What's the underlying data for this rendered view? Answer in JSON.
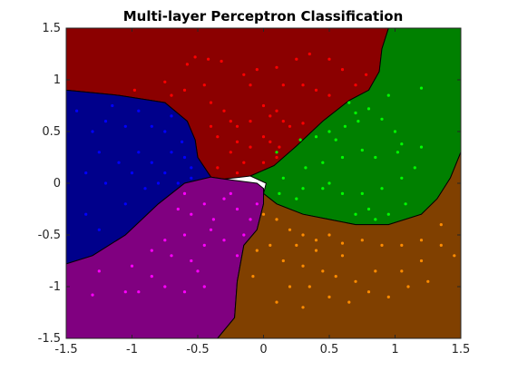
{
  "chart_data": {
    "type": "scatter",
    "title": "Multi-layer Perceptron Classification",
    "xlabel": "",
    "ylabel": "",
    "xlim": [
      -1.5,
      1.5
    ],
    "ylim": [
      -1.5,
      1.5
    ],
    "xticks": [
      "-1.5",
      "-1",
      "-0.5",
      "0",
      "0.5",
      "1",
      "1.5"
    ],
    "yticks": [
      "-1.5",
      "-1",
      "-0.5",
      "0",
      "0.5",
      "1",
      "1.5"
    ],
    "xtick_values": [
      -1.5,
      -1,
      -0.5,
      0,
      0.5,
      1,
      1.5
    ],
    "ytick_values": [
      -1.5,
      -1,
      -0.5,
      0,
      0.5,
      1,
      1.5
    ],
    "grid": false,
    "decision_regions": [
      {
        "class": "red",
        "color": "#8b0000",
        "polygon": [
          [
            -1.5,
            1.5
          ],
          [
            -1.5,
            0.9
          ],
          [
            -1.1,
            0.85
          ],
          [
            -0.75,
            0.78
          ],
          [
            -0.58,
            0.6
          ],
          [
            -0.52,
            0.42
          ],
          [
            -0.5,
            0.25
          ],
          [
            -0.4,
            0.06
          ],
          [
            -0.3,
            0.04
          ],
          [
            -0.1,
            0.07
          ],
          [
            0.08,
            0.17
          ],
          [
            0.25,
            0.36
          ],
          [
            0.45,
            0.6
          ],
          [
            0.65,
            0.8
          ],
          [
            0.8,
            0.9
          ],
          [
            0.88,
            1.08
          ],
          [
            0.9,
            1.3
          ],
          [
            0.95,
            1.5
          ]
        ]
      },
      {
        "class": "blue",
        "color": "#00008b",
        "polygon": [
          [
            -1.5,
            0.9
          ],
          [
            -1.1,
            0.85
          ],
          [
            -0.75,
            0.78
          ],
          [
            -0.58,
            0.6
          ],
          [
            -0.52,
            0.42
          ],
          [
            -0.5,
            0.25
          ],
          [
            -0.4,
            0.06
          ],
          [
            -0.6,
            0.0
          ],
          [
            -0.8,
            -0.2
          ],
          [
            -1.05,
            -0.5
          ],
          [
            -1.3,
            -0.7
          ],
          [
            -1.5,
            -0.78
          ]
        ]
      },
      {
        "class": "magenta",
        "color": "#800080",
        "polygon": [
          [
            -1.5,
            -0.78
          ],
          [
            -1.3,
            -0.7
          ],
          [
            -1.05,
            -0.5
          ],
          [
            -0.8,
            -0.2
          ],
          [
            -0.6,
            0.0
          ],
          [
            -0.4,
            0.06
          ],
          [
            -0.3,
            0.04
          ],
          [
            -0.05,
            0.0
          ],
          [
            0.0,
            -0.05
          ],
          [
            0.0,
            -0.2
          ],
          [
            -0.05,
            -0.45
          ],
          [
            -0.15,
            -0.6
          ],
          [
            -0.2,
            -0.95
          ],
          [
            -0.22,
            -1.3
          ],
          [
            -0.35,
            -1.5
          ],
          [
            -1.5,
            -1.5
          ]
        ]
      },
      {
        "class": "green",
        "color": "#008000",
        "polygon": [
          [
            0.95,
            1.5
          ],
          [
            0.9,
            1.3
          ],
          [
            0.88,
            1.08
          ],
          [
            0.8,
            0.9
          ],
          [
            0.65,
            0.8
          ],
          [
            0.45,
            0.6
          ],
          [
            0.25,
            0.36
          ],
          [
            0.08,
            0.17
          ],
          [
            -0.1,
            0.07
          ],
          [
            0.02,
            0.0
          ],
          [
            0.0,
            -0.1
          ],
          [
            0.1,
            -0.2
          ],
          [
            0.3,
            -0.3
          ],
          [
            0.5,
            -0.35
          ],
          [
            0.7,
            -0.4
          ],
          [
            0.95,
            -0.4
          ],
          [
            1.2,
            -0.3
          ],
          [
            1.32,
            -0.15
          ],
          [
            1.42,
            0.05
          ],
          [
            1.5,
            0.3
          ],
          [
            1.5,
            1.5
          ]
        ]
      },
      {
        "class": "orange",
        "color": "#804000",
        "polygon": [
          [
            0.0,
            -0.1
          ],
          [
            0.1,
            -0.2
          ],
          [
            0.3,
            -0.3
          ],
          [
            0.5,
            -0.35
          ],
          [
            0.7,
            -0.4
          ],
          [
            0.95,
            -0.4
          ],
          [
            1.2,
            -0.3
          ],
          [
            1.32,
            -0.15
          ],
          [
            1.42,
            0.05
          ],
          [
            1.5,
            0.3
          ],
          [
            1.5,
            -1.5
          ],
          [
            -0.35,
            -1.5
          ],
          [
            -0.22,
            -1.3
          ],
          [
            -0.2,
            -0.95
          ],
          [
            -0.15,
            -0.6
          ],
          [
            -0.05,
            -0.45
          ],
          [
            0.0,
            -0.2
          ]
        ]
      }
    ],
    "series": [
      {
        "color": "#ff0000",
        "points": [
          [
            -0.98,
            0.9
          ],
          [
            -0.75,
            0.98
          ],
          [
            -0.58,
            1.15
          ],
          [
            -0.52,
            1.22
          ],
          [
            -0.42,
            1.2
          ],
          [
            -0.32,
            1.18
          ],
          [
            -0.15,
            1.05
          ],
          [
            -0.05,
            1.1
          ],
          [
            0.1,
            1.12
          ],
          [
            0.25,
            1.2
          ],
          [
            0.35,
            1.25
          ],
          [
            0.5,
            1.2
          ],
          [
            0.6,
            1.1
          ],
          [
            -0.7,
            0.85
          ],
          [
            -0.6,
            0.9
          ],
          [
            -0.45,
            0.95
          ],
          [
            -0.4,
            0.78
          ],
          [
            -0.3,
            0.7
          ],
          [
            -0.25,
            0.6
          ],
          [
            -0.2,
            0.55
          ],
          [
            -0.1,
            0.6
          ],
          [
            0.0,
            0.75
          ],
          [
            0.05,
            0.65
          ],
          [
            0.1,
            0.7
          ],
          [
            0.15,
            0.6
          ],
          [
            0.2,
            0.55
          ],
          [
            0.3,
            0.58
          ],
          [
            -0.35,
            0.45
          ],
          [
            -0.2,
            0.4
          ],
          [
            -0.1,
            0.35
          ],
          [
            0.0,
            0.45
          ],
          [
            0.05,
            0.4
          ],
          [
            0.12,
            0.35
          ],
          [
            -0.25,
            0.3
          ],
          [
            -0.15,
            0.2
          ],
          [
            0.0,
            0.2
          ],
          [
            0.1,
            0.25
          ],
          [
            -0.35,
            0.15
          ],
          [
            -0.2,
            0.1
          ],
          [
            0.3,
            0.95
          ],
          [
            0.4,
            0.9
          ],
          [
            0.5,
            0.85
          ],
          [
            0.15,
            0.95
          ],
          [
            -0.1,
            0.95
          ],
          [
            -0.4,
            0.55
          ],
          [
            0.7,
            0.95
          ],
          [
            0.78,
            1.05
          ]
        ]
      },
      {
        "color": "#0000ff",
        "points": [
          [
            -1.42,
            0.7
          ],
          [
            -1.3,
            0.5
          ],
          [
            -1.2,
            0.6
          ],
          [
            -1.05,
            0.55
          ],
          [
            -1.25,
            0.3
          ],
          [
            -1.1,
            0.2
          ],
          [
            -0.95,
            0.3
          ],
          [
            -0.85,
            0.55
          ],
          [
            -0.75,
            0.5
          ],
          [
            -0.7,
            0.3
          ],
          [
            -0.85,
            0.2
          ],
          [
            -1.0,
            0.1
          ],
          [
            -0.9,
            -0.05
          ],
          [
            -0.75,
            0.1
          ],
          [
            -0.6,
            0.25
          ],
          [
            -0.55,
            0.15
          ],
          [
            -1.35,
            0.1
          ],
          [
            -1.2,
            0.0
          ],
          [
            -1.35,
            -0.3
          ],
          [
            -1.25,
            -0.45
          ],
          [
            -0.65,
            0.0
          ],
          [
            -0.95,
            0.7
          ],
          [
            -1.15,
            0.75
          ],
          [
            -0.7,
            0.65
          ],
          [
            -0.62,
            0.4
          ],
          [
            -1.05,
            -0.2
          ],
          [
            -0.8,
            0.0
          ],
          [
            -0.55,
            0.05
          ]
        ]
      },
      {
        "color": "#ff00ff",
        "points": [
          [
            -0.6,
            -0.1
          ],
          [
            -0.55,
            -0.3
          ],
          [
            -0.45,
            -0.2
          ],
          [
            -0.38,
            -0.35
          ],
          [
            -0.3,
            -0.15
          ],
          [
            -0.2,
            -0.25
          ],
          [
            -0.1,
            -0.35
          ],
          [
            -0.15,
            -0.5
          ],
          [
            -0.3,
            -0.55
          ],
          [
            -0.45,
            -0.6
          ],
          [
            -0.6,
            -0.5
          ],
          [
            -0.75,
            -0.55
          ],
          [
            -0.85,
            -0.65
          ],
          [
            -0.7,
            -0.7
          ],
          [
            -0.55,
            -0.75
          ],
          [
            -0.5,
            -0.85
          ],
          [
            -0.45,
            -1.0
          ],
          [
            -0.6,
            -1.05
          ],
          [
            -0.75,
            -1.0
          ],
          [
            -0.95,
            -1.05
          ],
          [
            -1.05,
            -1.05
          ],
          [
            -1.25,
            -0.85
          ],
          [
            -1.3,
            -1.08
          ],
          [
            -1.0,
            -0.8
          ],
          [
            -0.4,
            -0.45
          ],
          [
            -0.25,
            -0.1
          ],
          [
            -0.05,
            -0.2
          ],
          [
            -0.65,
            -0.25
          ],
          [
            -0.2,
            -0.7
          ],
          [
            -0.85,
            -0.9
          ]
        ]
      },
      {
        "color": "#00ff00",
        "points": [
          [
            1.2,
            0.92
          ],
          [
            0.95,
            0.85
          ],
          [
            0.7,
            0.68
          ],
          [
            0.72,
            0.6
          ],
          [
            0.62,
            0.55
          ],
          [
            0.5,
            0.5
          ],
          [
            0.4,
            0.45
          ],
          [
            0.28,
            0.42
          ],
          [
            0.8,
            0.72
          ],
          [
            0.9,
            0.62
          ],
          [
            1.0,
            0.5
          ],
          [
            1.05,
            0.38
          ],
          [
            1.02,
            0.3
          ],
          [
            0.85,
            0.25
          ],
          [
            0.75,
            0.32
          ],
          [
            0.6,
            0.25
          ],
          [
            0.45,
            0.2
          ],
          [
            0.32,
            0.15
          ],
          [
            1.15,
            0.15
          ],
          [
            1.05,
            0.05
          ],
          [
            0.9,
            -0.05
          ],
          [
            0.75,
            -0.1
          ],
          [
            0.6,
            -0.1
          ],
          [
            0.45,
            -0.05
          ],
          [
            0.3,
            -0.05
          ],
          [
            0.15,
            0.05
          ],
          [
            0.12,
            -0.1
          ],
          [
            0.8,
            -0.25
          ],
          [
            0.7,
            -0.3
          ],
          [
            0.85,
            -0.35
          ],
          [
            0.95,
            -0.3
          ],
          [
            1.08,
            -0.2
          ],
          [
            0.1,
            0.3
          ],
          [
            0.55,
            0.42
          ],
          [
            0.65,
            0.78
          ],
          [
            1.2,
            0.35
          ],
          [
            0.5,
            0.0
          ],
          [
            0.25,
            -0.15
          ]
        ]
      },
      {
        "color": "#ff8c00",
        "points": [
          [
            0.0,
            -0.3
          ],
          [
            0.1,
            -0.35
          ],
          [
            0.2,
            -0.45
          ],
          [
            0.3,
            -0.5
          ],
          [
            0.4,
            -0.55
          ],
          [
            0.5,
            -0.5
          ],
          [
            0.6,
            -0.58
          ],
          [
            0.75,
            -0.55
          ],
          [
            0.9,
            -0.6
          ],
          [
            1.05,
            -0.6
          ],
          [
            1.2,
            -0.55
          ],
          [
            1.35,
            -0.6
          ],
          [
            1.45,
            -0.7
          ],
          [
            1.2,
            -0.75
          ],
          [
            1.05,
            -0.85
          ],
          [
            0.85,
            -0.85
          ],
          [
            0.7,
            -0.95
          ],
          [
            0.55,
            -0.9
          ],
          [
            0.45,
            -0.85
          ],
          [
            0.3,
            -0.8
          ],
          [
            0.15,
            -0.75
          ],
          [
            0.05,
            -0.6
          ],
          [
            -0.05,
            -0.65
          ],
          [
            0.2,
            -1.0
          ],
          [
            0.35,
            -1.0
          ],
          [
            0.5,
            -1.1
          ],
          [
            0.65,
            -1.15
          ],
          [
            0.8,
            -1.05
          ],
          [
            0.95,
            -1.1
          ],
          [
            1.1,
            -1.0
          ],
          [
            1.25,
            -0.95
          ],
          [
            0.3,
            -1.2
          ],
          [
            0.1,
            -1.15
          ],
          [
            0.4,
            -0.65
          ],
          [
            0.6,
            -0.7
          ],
          [
            0.25,
            -0.6
          ],
          [
            -0.08,
            -0.9
          ],
          [
            1.35,
            -0.4
          ]
        ]
      }
    ]
  }
}
